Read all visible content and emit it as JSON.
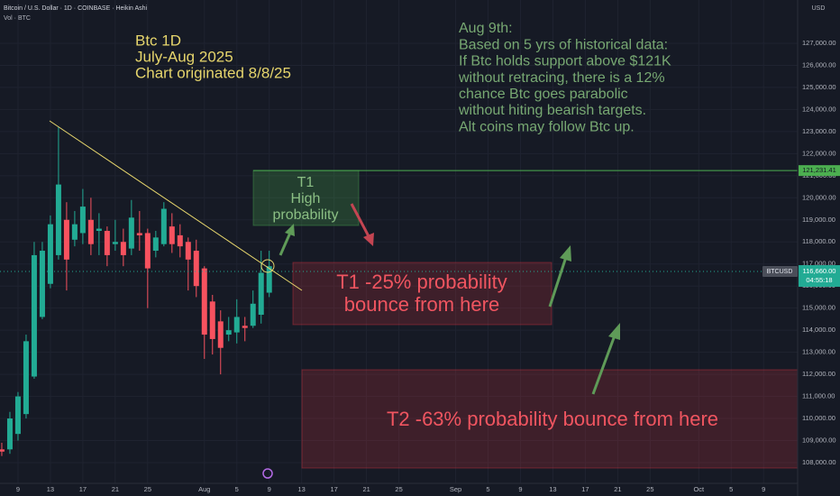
{
  "header": {
    "symbol": "Bitcoin / U.S. Dollar · 1D · COINBASE · Heikin Ashi",
    "indicator": "Vol · BTC"
  },
  "chart_data": {
    "type": "candlestick",
    "y_axis_label": "USD",
    "x": [
      6,
      7,
      8,
      9,
      10,
      11,
      12,
      13,
      14,
      15,
      16,
      17,
      18,
      19,
      20,
      21,
      22,
      23,
      24,
      25,
      26,
      27,
      28,
      29,
      30,
      31,
      32,
      33,
      34,
      35,
      36,
      37,
      38,
      39,
      40
    ],
    "open": [
      108500,
      108600,
      108600,
      109300,
      110200,
      111900,
      114600,
      116100,
      117400,
      119000,
      118100,
      118400,
      119000,
      118500,
      118500,
      117900,
      118000,
      117700,
      118400,
      118400,
      117600,
      117900,
      118700,
      118300,
      118000,
      117600,
      116800,
      115300,
      114400,
      113800,
      113900,
      114200,
      114200,
      114700,
      115700
    ],
    "high": [
      108900,
      108900,
      110300,
      111200,
      113800,
      118000,
      118000,
      119200,
      123200,
      119800,
      119400,
      120400,
      120000,
      119300,
      118700,
      119000,
      118600,
      119900,
      119400,
      118600,
      118500,
      119800,
      119300,
      118800,
      118200,
      118100,
      116900,
      115600,
      114900,
      114600,
      115400,
      114600,
      115800,
      117600,
      117600
    ],
    "low": [
      108100,
      108300,
      108400,
      109000,
      110000,
      111800,
      114500,
      115900,
      117200,
      115800,
      117800,
      117900,
      117400,
      117400,
      116900,
      117600,
      116900,
      117400,
      117600,
      115000,
      117300,
      117800,
      117500,
      117300,
      115800,
      115500,
      112700,
      112900,
      112000,
      113500,
      113400,
      113500,
      114100,
      114300,
      115500
    ],
    "close": [
      108700,
      108500,
      110000,
      111000,
      113500,
      117400,
      117600,
      118800,
      120600,
      117200,
      118800,
      119600,
      117900,
      118600,
      117400,
      118000,
      117400,
      119100,
      118300,
      116800,
      118200,
      119500,
      117900,
      117800,
      117200,
      116000,
      113800,
      113600,
      113200,
      114000,
      114600,
      114100,
      115200,
      116600,
      116900
    ],
    "up_color": "#22ab94",
    "down_color": "#f7525f",
    "xlim": [
      6.78,
      105.2
    ],
    "xticks": [
      {
        "value": 9,
        "label": "9"
      },
      {
        "value": 13,
        "label": "13"
      },
      {
        "value": 17,
        "label": "17"
      },
      {
        "value": 21,
        "label": "21"
      },
      {
        "value": 25,
        "label": "25"
      },
      {
        "value": 32,
        "label": "Aug"
      },
      {
        "value": 36,
        "label": "5"
      },
      {
        "value": 40,
        "label": "9"
      },
      {
        "value": 44,
        "label": "13"
      },
      {
        "value": 48,
        "label": "17"
      },
      {
        "value": 52,
        "label": "21"
      },
      {
        "value": 56,
        "label": "25"
      },
      {
        "value": 63,
        "label": "Sep"
      },
      {
        "value": 67,
        "label": "5"
      },
      {
        "value": 71,
        "label": "9"
      },
      {
        "value": 75,
        "label": "13"
      },
      {
        "value": 79,
        "label": "17"
      },
      {
        "value": 83,
        "label": "21"
      },
      {
        "value": 87,
        "label": "25"
      },
      {
        "value": 93,
        "label": "Oct"
      },
      {
        "value": 97,
        "label": "5"
      },
      {
        "value": 101,
        "label": "9"
      }
    ],
    "ylim": [
      107060,
      128960
    ],
    "yticks": [
      {
        "value": 108000,
        "label": "108,000.00"
      },
      {
        "value": 109000,
        "label": "109,000.00"
      },
      {
        "value": 110000,
        "label": "110,000.00"
      },
      {
        "value": 111000,
        "label": "111,000.00"
      },
      {
        "value": 112000,
        "label": "112,000.00"
      },
      {
        "value": 113000,
        "label": "113,000.00"
      },
      {
        "value": 114000,
        "label": "114,000.00"
      },
      {
        "value": 115000,
        "label": "115,000.00"
      },
      {
        "value": 116000,
        "label": "116,000.00"
      },
      {
        "value": 117000,
        "label": "117,000.00"
      },
      {
        "value": 118000,
        "label": "118,000.00"
      },
      {
        "value": 119000,
        "label": "119,000.00"
      },
      {
        "value": 120000,
        "label": "120,000.00"
      },
      {
        "value": 121000,
        "label": "121,000.00"
      },
      {
        "value": 122000,
        "label": "122,000.00"
      },
      {
        "value": 123000,
        "label": "123,000.00"
      },
      {
        "value": 124000,
        "label": "124,000.00"
      },
      {
        "value": 125000,
        "label": "125,000.00"
      },
      {
        "value": 126000,
        "label": "126,000.00"
      },
      {
        "value": 127000,
        "label": "127,000.00"
      }
    ],
    "grid": true,
    "level": {
      "value": 121231.41,
      "label": "121,231.41"
    },
    "last_price": {
      "symbol": "BTCUSD",
      "value": 116660,
      "label": "116,660.00",
      "countdown": "04:55:18"
    },
    "title_lines": [
      "Btc 1D",
      "July-Aug 2025",
      "Chart originated 8/8/25"
    ],
    "note_lines": [
      "Aug 9th:",
      "Based on 5 yrs of historical data:",
      "If Btc holds support above $121K",
      "without retracing, there is a 12%",
      "chance Btc goes parabolic",
      "without hiting bearish targets.",
      "Alt coins may follow Btc up."
    ],
    "t1_box": [
      "T1",
      "High",
      "probability"
    ],
    "t1_bounce": [
      "T1 -25% probability",
      "bounce from here"
    ],
    "t2_bounce": "T2 -63% probability bounce from here"
  }
}
